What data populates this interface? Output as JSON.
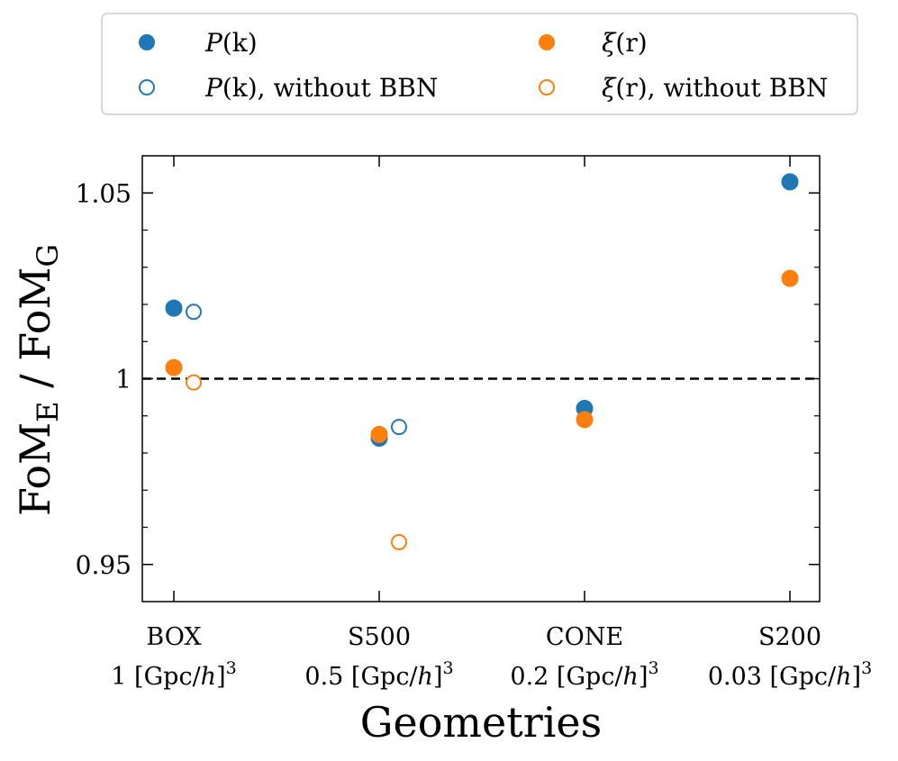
{
  "chart_data": {
    "type": "scatter",
    "categories": [
      "BOX",
      "S500",
      "CONE",
      "S200"
    ],
    "category_sublabels": [
      {
        "pre": "1 [Gpc/",
        "h": "h",
        "post": "]",
        "sup": "3"
      },
      {
        "pre": "0.5 [Gpc/",
        "h": "h",
        "post": "]",
        "sup": "3"
      },
      {
        "pre": "0.2 [Gpc/",
        "h": "h",
        "post": "]",
        "sup": "3"
      },
      {
        "pre": "0.03 [Gpc/",
        "h": "h",
        "post": "]",
        "sup": "3"
      }
    ],
    "xlabel": "Geometries",
    "ylabel": {
      "main1": "FoM",
      "sub1": "E",
      "sep": " / ",
      "main2": "FoM",
      "sub2": "G"
    },
    "ylim": [
      0.94,
      1.06
    ],
    "yticks": [
      0.95,
      1.0,
      1.05
    ],
    "ytick_labels": [
      "0.95",
      "1",
      "1.05"
    ],
    "reference_line": {
      "y": 1.0,
      "style": "dashed",
      "color": "#000000"
    },
    "series": [
      {
        "key": "pk",
        "name_parts": {
          "it": "P",
          "rest": "(k)"
        },
        "name_parts_suffix": "",
        "filled": true,
        "color": "#1f77b4",
        "offset": 0,
        "values": [
          1.019,
          0.984,
          0.992,
          1.053
        ]
      },
      {
        "key": "pk_nobbn",
        "name_parts": {
          "it": "P",
          "rest": "(k)"
        },
        "name_parts_suffix": ", without BBN",
        "filled": false,
        "color": "#1f77b4",
        "offset": 1,
        "values": [
          1.018,
          0.987,
          null,
          null
        ]
      },
      {
        "key": "xi",
        "name_parts": {
          "it": "ξ",
          "rest": "(r)"
        },
        "name_parts_suffix": "",
        "filled": true,
        "color": "#ff7f0e",
        "offset": 0,
        "values": [
          1.003,
          0.985,
          0.989,
          1.027
        ]
      },
      {
        "key": "xi_nobbn",
        "name_parts": {
          "it": "ξ",
          "rest": "(r)"
        },
        "name_parts_suffix": ", without BBN",
        "filled": false,
        "color": "#ff7f0e",
        "offset": 1,
        "values": [
          0.999,
          0.956,
          null,
          null
        ]
      }
    ],
    "legend": {
      "placement": "top",
      "columns": 2
    },
    "grid": false
  }
}
